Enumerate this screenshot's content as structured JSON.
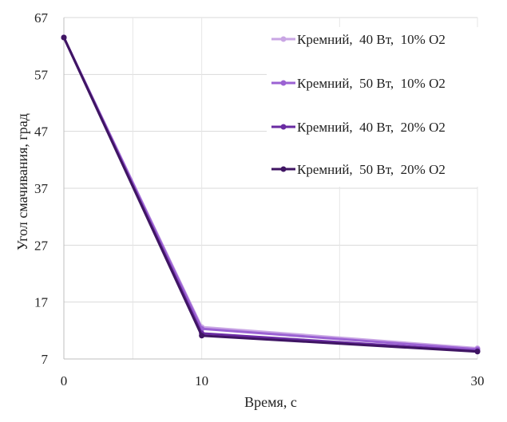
{
  "chart_data": {
    "type": "line",
    "title": "",
    "xlabel": "Время, с",
    "ylabel": "Угол смачивания, град",
    "x": [
      0,
      10,
      30
    ],
    "x_tick_labels": [
      "0",
      "10",
      "30"
    ],
    "y_tick_labels": [
      "7",
      "17",
      "27",
      "37",
      "47",
      "57",
      "67"
    ],
    "y_ticks": [
      7,
      17,
      27,
      37,
      47,
      57,
      67
    ],
    "ylim": [
      7,
      67
    ],
    "grid": true,
    "legend_position": "top-right",
    "series": [
      {
        "name": "Кремний,  40 Вт,  10% O2",
        "values": [
          63.5,
          12.6,
          8.9
        ],
        "color": "#c9a6e4"
      },
      {
        "name": "Кремний,  50 Вт,  10% O2",
        "values": [
          63.5,
          12.3,
          8.7
        ],
        "color": "#9b62d3"
      },
      {
        "name": "Кремний,  40 Вт,  20% O2",
        "values": [
          63.5,
          11.5,
          8.4
        ],
        "color": "#6a2ba2"
      },
      {
        "name": "Кремний,  50 Вт,  20% O2",
        "values": [
          63.5,
          11.1,
          8.3
        ],
        "color": "#3f1563"
      }
    ]
  }
}
